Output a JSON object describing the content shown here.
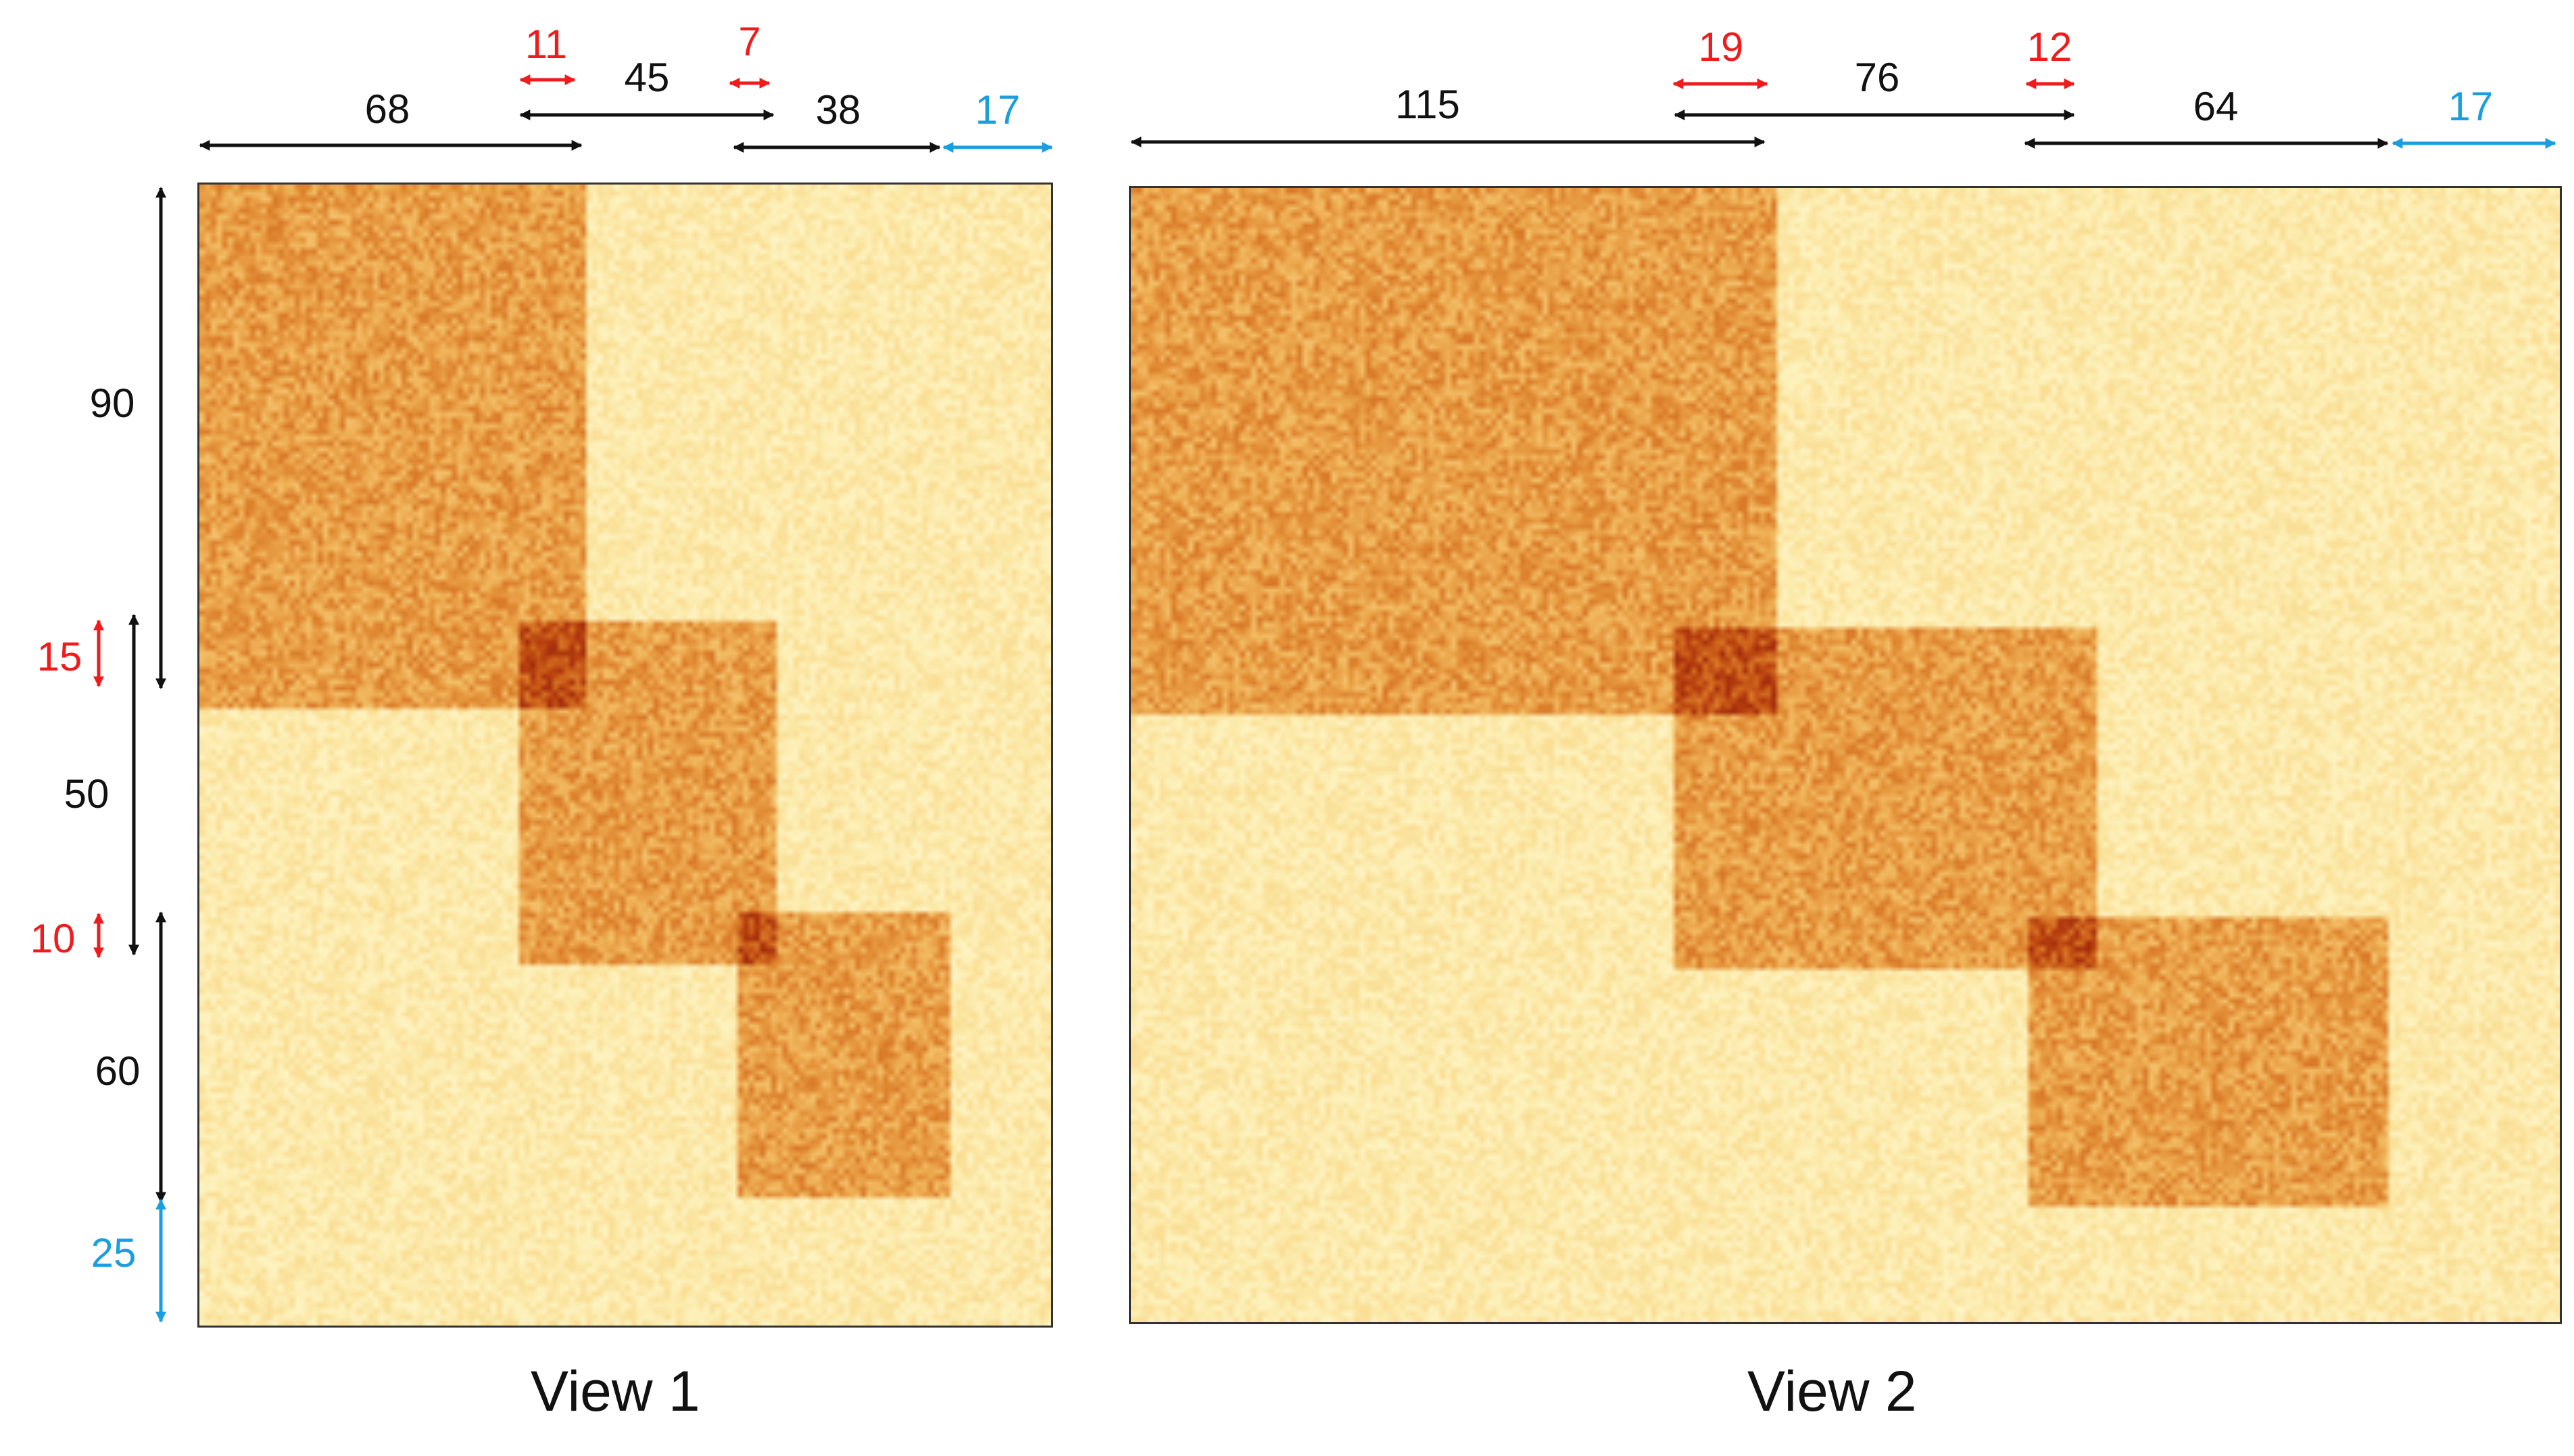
{
  "colors": {
    "background": "#fbe6a6",
    "block": "#f2a64a",
    "overlap": "#c9440c",
    "black_label": "#111111",
    "red_label": "#ee1c1c",
    "blue_label": "#1a9ee0"
  },
  "views": [
    {
      "caption": "View 1",
      "col_labels": {
        "a": "68",
        "ov1": "11",
        "b": "45",
        "ov2": "7",
        "c": "38",
        "noise": "17"
      },
      "row_labels": {
        "a": "90",
        "ov1": "15",
        "b": "50",
        "ov2": "10",
        "c": "60",
        "noise": "25"
      }
    },
    {
      "caption": "View 2",
      "col_labels": {
        "a": "115",
        "ov1": "19",
        "b": "76",
        "ov2": "12",
        "c": "64",
        "noise": "17"
      }
    }
  ]
}
